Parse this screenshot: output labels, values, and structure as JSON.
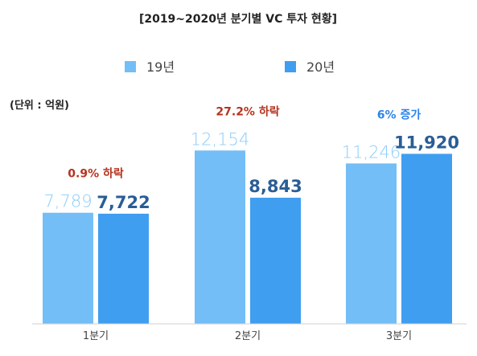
{
  "chart_data": {
    "type": "bar",
    "title": "[2019~2020년 분기별 VC 투자 현황]",
    "unit_label": "(단위 : 억원)",
    "categories": [
      "1분기",
      "2분기",
      "3분기"
    ],
    "series": [
      {
        "name": "19년",
        "values": [
          7789,
          12154,
          11246
        ],
        "labels": [
          "7,789",
          "12,154",
          "11,246"
        ],
        "color": "#74bef7",
        "label_color": "#8ccdfa"
      },
      {
        "name": "20년",
        "values": [
          7722,
          8843,
          11920
        ],
        "labels": [
          "7,722",
          "8,843",
          "11,920"
        ],
        "color": "#409ef0",
        "label_color": "#2a5d96"
      }
    ],
    "annotations": [
      {
        "category": "1분기",
        "text": "0.9% 하락",
        "color": "#b5331e"
      },
      {
        "category": "2분기",
        "text": "27.2% 하락",
        "color": "#b5331e"
      },
      {
        "category": "3분기",
        "text": "6% 증가",
        "color": "#2d84e8"
      }
    ],
    "legend_position": "top-center",
    "grid": false
  }
}
